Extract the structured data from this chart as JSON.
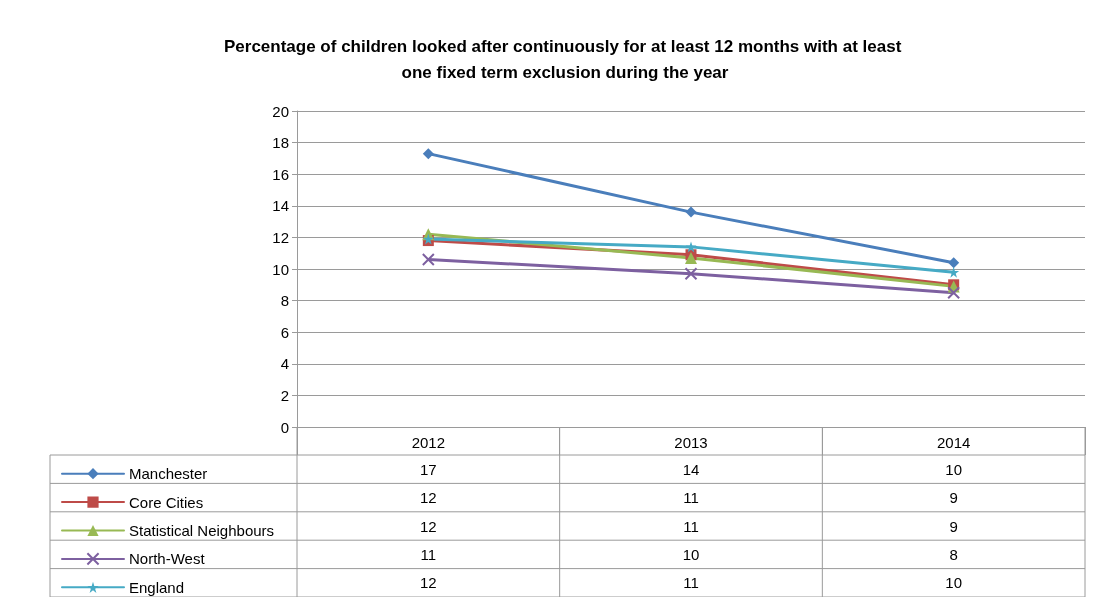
{
  "chart_data": {
    "type": "line",
    "title": "Percentage of children looked after continuously for at least 12 months with at least one fixed term exclusion during the year",
    "categories": [
      "2012",
      "2013",
      "2014"
    ],
    "series": [
      {
        "name": "Manchester",
        "color": "#4a7ebb",
        "marker": "diamond",
        "values": [
          17.3,
          13.6,
          10.4
        ],
        "value_labels": [
          "17",
          "14",
          "10"
        ]
      },
      {
        "name": "Core Cities",
        "color": "#be4b48",
        "marker": "square",
        "values": [
          11.8,
          10.9,
          9.0
        ],
        "value_labels": [
          "12",
          "11",
          "9"
        ]
      },
      {
        "name": "Statistical Neighbours",
        "color": "#98b954",
        "marker": "triangle",
        "values": [
          12.2,
          10.7,
          8.9
        ],
        "value_labels": [
          "12",
          "11",
          "9"
        ]
      },
      {
        "name": "North-West",
        "color": "#7d60a0",
        "marker": "cross",
        "values": [
          10.6,
          9.7,
          8.5
        ],
        "value_labels": [
          "11",
          "10",
          "8"
        ]
      },
      {
        "name": "England",
        "color": "#46aac5",
        "marker": "star",
        "values": [
          11.9,
          11.4,
          9.8
        ],
        "value_labels": [
          "12",
          "11",
          "10"
        ]
      }
    ],
    "ylim": [
      0,
      20
    ],
    "yticks": [
      0,
      2,
      4,
      6,
      8,
      10,
      12,
      14,
      16,
      18,
      20
    ],
    "grid": "y",
    "legend": "bottom",
    "line_style": "solid"
  }
}
